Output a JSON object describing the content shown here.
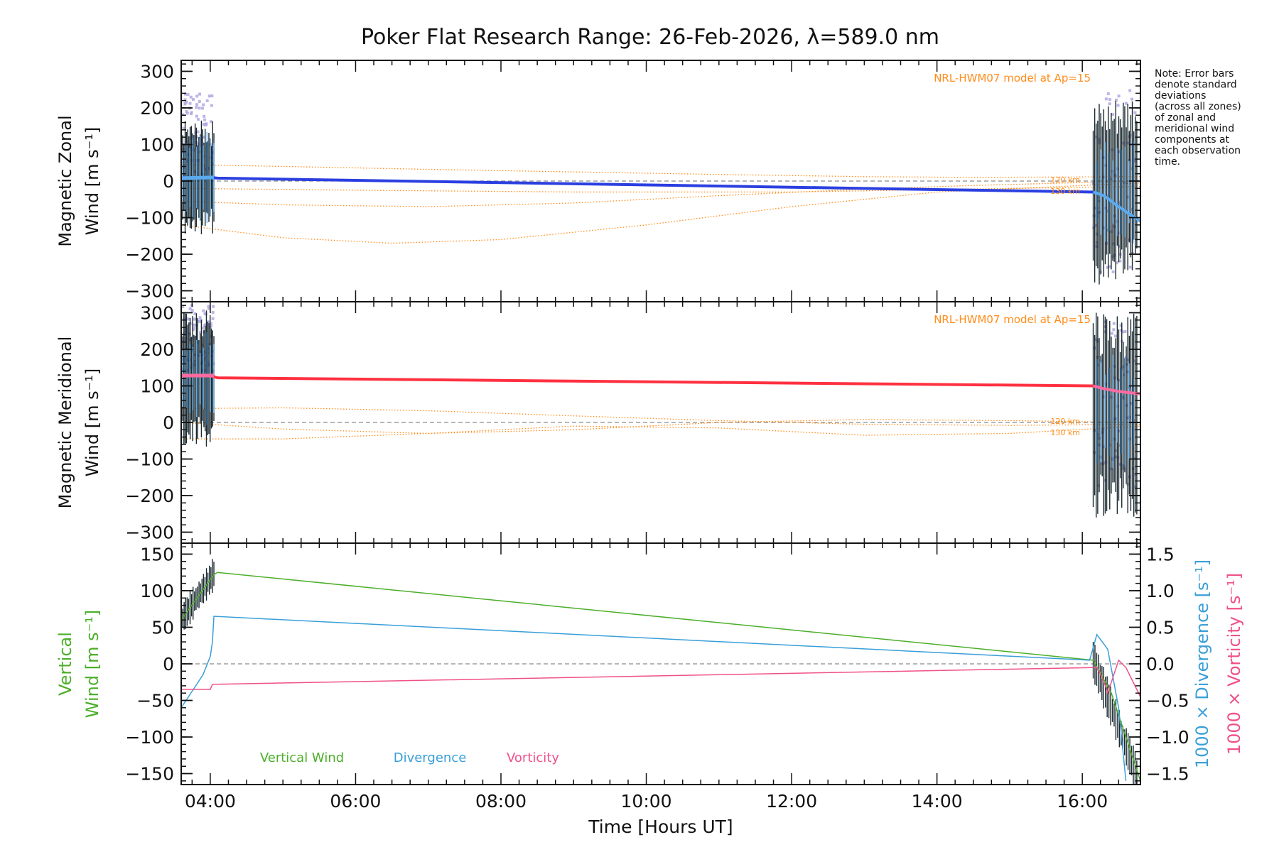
{
  "title": "Poker Flat Research Range: 26-Feb-2026, λ=589.0 nm",
  "note_lines": [
    "Note: Error bars",
    "denote standard",
    "deviations",
    "(across all zones)",
    "of zonal and",
    "meridional wind",
    "components at",
    "each observation",
    "time."
  ],
  "colors": {
    "zonal_line": "#2b3fe0",
    "zonal_light": "#5aaaf0",
    "meridional_line": "#ff3040",
    "meridional_light": "#ff6aa0",
    "model": "#ff8c1a",
    "lavender": "#b4a8e0",
    "vertical": "#4caf2a",
    "divergence": "#3a9fd8",
    "vorticity": "#f0508a",
    "errbar": "#1a2a30",
    "zero_line": "#8a8a8a"
  },
  "chart_data": [
    {
      "type": "line",
      "name": "magnetic-zonal-wind",
      "ylabel_lines": [
        "Magnetic Zonal",
        "Wind [m s⁻¹]"
      ],
      "xlim": [
        3.6,
        16.8
      ],
      "ylim": [
        -330,
        330
      ],
      "yticks": [
        -300,
        -200,
        -100,
        0,
        100,
        200,
        300
      ],
      "model_label": "NRL-HWM07 model at Ap=15",
      "altitude_labels": [
        "120 km",
        "130 km"
      ],
      "series": [
        {
          "name": "Zonal wind",
          "x": [
            3.6,
            4.0,
            4.1,
            16.15
          ],
          "y": [
            8,
            10,
            8,
            -30
          ]
        },
        {
          "name": "Zonal wind (late)",
          "x": [
            16.15,
            16.3,
            16.5,
            16.8
          ],
          "y": [
            -30,
            -40,
            -70,
            -110
          ]
        }
      ],
      "model_curves": [
        {
          "x": [
            3.6,
            5,
            7,
            9,
            11,
            13,
            14.5,
            16.8
          ],
          "y": [
            45,
            40,
            32,
            25,
            18,
            12,
            10,
            12
          ]
        },
        {
          "x": [
            3.6,
            5,
            7,
            9,
            11,
            13,
            14.5,
            16.8
          ],
          "y": [
            -55,
            -65,
            -70,
            -60,
            -40,
            -22,
            -12,
            0
          ]
        },
        {
          "x": [
            3.6,
            5,
            6.5,
            8,
            10,
            12,
            14,
            16.8
          ],
          "y": [
            -120,
            -155,
            -170,
            -160,
            -120,
            -70,
            -30,
            -5
          ]
        },
        {
          "x": [
            3.6,
            6,
            9,
            12,
            15,
            16.8
          ],
          "y": [
            -20,
            -25,
            -30,
            -30,
            -20,
            -15
          ]
        }
      ]
    },
    {
      "type": "line",
      "name": "magnetic-meridional-wind",
      "ylabel_lines": [
        "Magnetic Meridional",
        "Wind [m s⁻¹]"
      ],
      "xlim": [
        3.6,
        16.8
      ],
      "ylim": [
        -330,
        330
      ],
      "yticks": [
        -300,
        -200,
        -100,
        0,
        100,
        200,
        300
      ],
      "model_label": "NRL-HWM07 model at Ap=15",
      "altitude_labels": [
        "120 km",
        "130 km"
      ],
      "series": [
        {
          "name": "Meridional wind",
          "x": [
            3.6,
            4.0,
            4.1,
            16.15
          ],
          "y": [
            128,
            128,
            122,
            100
          ]
        },
        {
          "name": "Meridional wind (late)",
          "x": [
            16.15,
            16.3,
            16.5,
            16.8
          ],
          "y": [
            100,
            92,
            85,
            78
          ]
        }
      ],
      "model_curves": [
        {
          "x": [
            3.6,
            5,
            7,
            9,
            11,
            13,
            15,
            16.8
          ],
          "y": [
            38,
            40,
            32,
            18,
            5,
            -5,
            -8,
            -5
          ]
        },
        {
          "x": [
            3.6,
            5,
            7,
            9,
            11,
            13,
            15,
            16.8
          ],
          "y": [
            0,
            -18,
            -30,
            -20,
            0,
            8,
            5,
            0
          ]
        },
        {
          "x": [
            3.6,
            5,
            7,
            9,
            11,
            13,
            15,
            16.8
          ],
          "y": [
            -45,
            -45,
            -30,
            -10,
            -15,
            -35,
            -30,
            -10
          ]
        }
      ]
    },
    {
      "type": "line",
      "name": "vertical-wind-divergence-vorticity",
      "ylabel_lines": [
        "Vertical",
        "Wind [m s⁻¹]"
      ],
      "ylabel_right_1": "1000 × Divergence [s⁻¹]",
      "ylabel_right_2": "1000 × Vorticity [s⁻¹]",
      "xlim": [
        3.6,
        16.8
      ],
      "ylim": [
        -165,
        165
      ],
      "yticks": [
        -150,
        -100,
        -50,
        0,
        50,
        100,
        150
      ],
      "ylim_right": [
        -1.65,
        1.65
      ],
      "yticks_right": [
        "-1.5",
        "-1.0",
        "-0.5",
        "0.0",
        "0.5",
        "1.0",
        "1.5"
      ],
      "xticks": [
        "04:00",
        "06:00",
        "08:00",
        "10:00",
        "12:00",
        "14:00",
        "16:00"
      ],
      "xtick_values": [
        4,
        6,
        8,
        10,
        12,
        14,
        16
      ],
      "xlabel": "Time [Hours UT]",
      "legend": [
        "Vertical Wind",
        "Divergence",
        "Vorticity"
      ],
      "series": [
        {
          "name": "Vertical Wind",
          "axis": "left",
          "x": [
            3.6,
            4.05,
            4.1,
            16.15,
            16.4,
            16.6,
            16.8
          ],
          "y": [
            60,
            122,
            125,
            5,
            -40,
            -100,
            -160
          ]
        },
        {
          "name": "Divergence",
          "axis": "right",
          "x": [
            3.6,
            3.7,
            3.9,
            4.0,
            4.03,
            4.05,
            16.1,
            16.2,
            16.35,
            16.5,
            16.6
          ],
          "y": [
            -0.6,
            -0.45,
            -0.15,
            0.1,
            0.3,
            0.65,
            0.05,
            0.4,
            0.2,
            -0.6,
            -1.6
          ]
        },
        {
          "name": "Vorticity",
          "axis": "right",
          "x": [
            3.6,
            4.0,
            4.03,
            16.2,
            16.3,
            16.35,
            16.45,
            16.5,
            16.6,
            16.8
          ],
          "y": [
            -0.35,
            -0.35,
            -0.28,
            -0.05,
            -0.25,
            -0.4,
            -0.1,
            0.05,
            -0.05,
            -0.45
          ]
        }
      ]
    }
  ]
}
